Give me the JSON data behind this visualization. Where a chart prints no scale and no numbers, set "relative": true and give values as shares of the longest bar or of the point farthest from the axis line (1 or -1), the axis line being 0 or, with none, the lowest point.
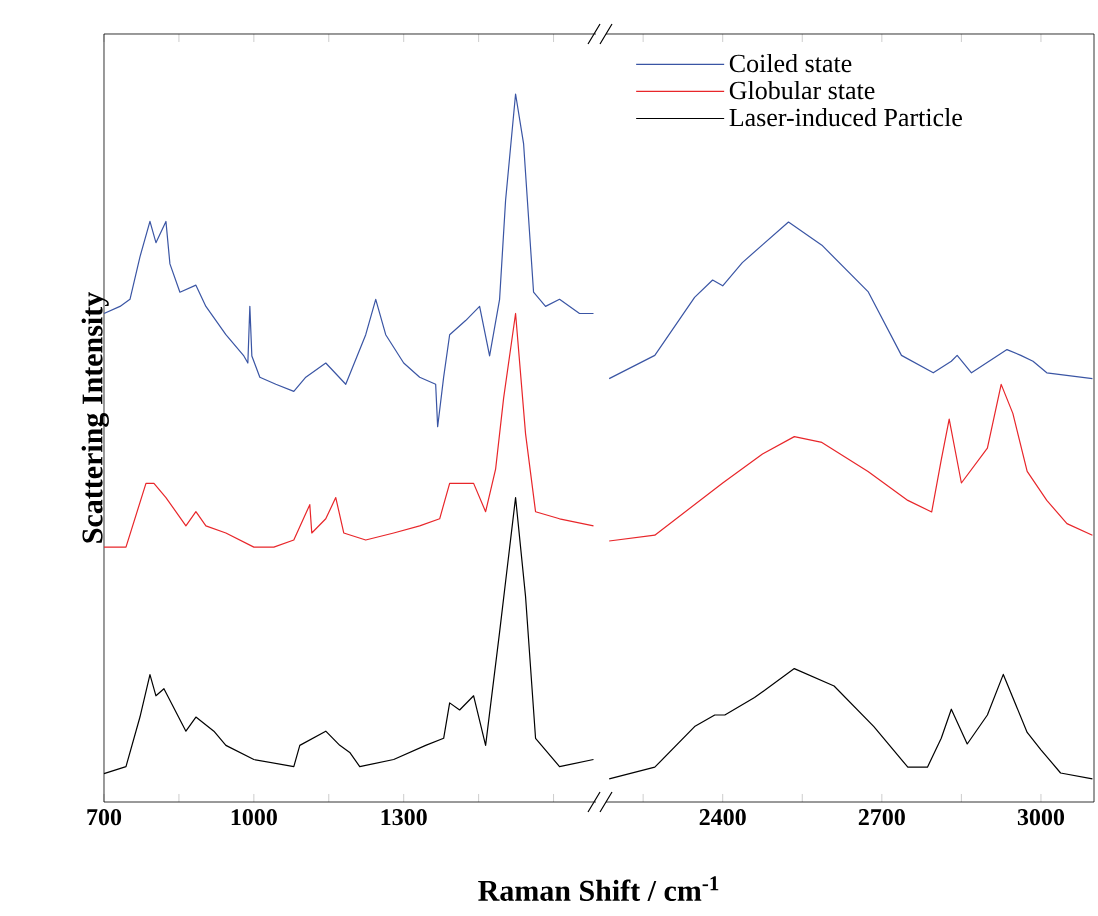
{
  "chart_data": [
    {
      "type": "line",
      "relative": true,
      "xlabel": "Raman Shift / cm$^{-1}$",
      "ylabel": "Scattering Intensity",
      "xlim": [
        700,
        1685
      ],
      "xticks": [
        700,
        {
          "value": 850,
          "label": null
        },
        1000,
        {
          "value": 1150,
          "label": null
        },
        1300,
        {
          "value": 1450,
          "label": null
        },
        {
          "value": 1600,
          "label": null
        }
      ],
      "tick_labels": "x",
      "marker": "none",
      "series": [
        {
          "color": "#3a55a4",
          "x": [
            700,
            732,
            752,
            772,
            792,
            804,
            824,
            832,
            852,
            884,
            904,
            944,
            980,
            988,
            992,
            996,
            1012,
            1044,
            1080,
            1104,
            1144,
            1184,
            1224,
            1244,
            1264,
            1300,
            1332,
            1364,
            1368,
            1380,
            1392,
            1424,
            1452,
            1472,
            1492,
            1504,
            1524,
            1540,
            1560,
            1584,
            1612,
            1652,
            1680
          ],
          "values": [
            0.69,
            0.7,
            0.71,
            0.77,
            0.82,
            0.79,
            0.82,
            0.76,
            0.72,
            0.73,
            0.7,
            0.66,
            0.63,
            0.62,
            0.7,
            0.63,
            0.6,
            0.59,
            0.58,
            0.6,
            0.62,
            0.59,
            0.66,
            0.71,
            0.66,
            0.62,
            0.6,
            0.59,
            0.53,
            0.6,
            0.66,
            0.68,
            0.7,
            0.63,
            0.71,
            0.85,
            1.0,
            0.93,
            0.72,
            0.7,
            0.71,
            0.69,
            0.69
          ]
        },
        {
          "color": "#e8262a",
          "x": [
            700,
            744,
            784,
            800,
            824,
            864,
            884,
            904,
            944,
            1000,
            1040,
            1080,
            1112,
            1116,
            1144,
            1164,
            1180,
            1224,
            1280,
            1332,
            1372,
            1392,
            1440,
            1464,
            1484,
            1500,
            1524,
            1544,
            1564,
            1612,
            1680
          ],
          "values": [
            0.36,
            0.36,
            0.45,
            0.45,
            0.43,
            0.39,
            0.41,
            0.39,
            0.38,
            0.36,
            0.36,
            0.37,
            0.42,
            0.38,
            0.4,
            0.43,
            0.38,
            0.37,
            0.38,
            0.39,
            0.4,
            0.45,
            0.45,
            0.41,
            0.47,
            0.57,
            0.69,
            0.52,
            0.41,
            0.4,
            0.39
          ]
        },
        {
          "color": "#000000",
          "x": [
            700,
            744,
            772,
            792,
            804,
            820,
            864,
            884,
            920,
            944,
            1000,
            1080,
            1092,
            1144,
            1172,
            1192,
            1212,
            1280,
            1344,
            1380,
            1392,
            1412,
            1440,
            1464,
            1492,
            1524,
            1544,
            1564,
            1612,
            1680
          ],
          "values": [
            0.04,
            0.05,
            0.12,
            0.18,
            0.15,
            0.16,
            0.1,
            0.12,
            0.1,
            0.08,
            0.06,
            0.05,
            0.08,
            0.1,
            0.08,
            0.07,
            0.05,
            0.06,
            0.08,
            0.09,
            0.14,
            0.13,
            0.15,
            0.08,
            0.24,
            0.43,
            0.29,
            0.09,
            0.05,
            0.06
          ]
        }
      ]
    },
    {
      "type": "line",
      "relative": true,
      "xlim": [
        2180,
        3100
      ],
      "xticks": [
        {
          "value": 2250,
          "label": null
        },
        2400,
        {
          "value": 2550,
          "label": null
        },
        2700,
        {
          "value": 2850,
          "label": null
        },
        3000
      ],
      "tick_labels": "x",
      "marker": "none",
      "legend": "top",
      "series": [
        {
          "name": "Coiled state",
          "color": "#3a55a4",
          "x": [
            2186,
            2272,
            2347,
            2381,
            2400,
            2437,
            2524,
            2587,
            2674,
            2737,
            2797,
            2831,
            2842,
            2869,
            2936,
            2962,
            2985,
            3011,
            3097
          ],
          "values": [
            0.73,
            0.77,
            0.87,
            0.9,
            0.89,
            0.93,
            1.0,
            0.96,
            0.88,
            0.77,
            0.74,
            0.76,
            0.77,
            0.74,
            0.78,
            0.77,
            0.76,
            0.74,
            0.73
          ]
        },
        {
          "name": "Globular state",
          "color": "#e8262a",
          "x": [
            2186,
            2272,
            2400,
            2475,
            2535,
            2587,
            2674,
            2749,
            2794,
            2812,
            2827,
            2850,
            2899,
            2925,
            2947,
            2974,
            3011,
            3049,
            3097
          ],
          "values": [
            0.45,
            0.46,
            0.55,
            0.6,
            0.63,
            0.62,
            0.57,
            0.52,
            0.5,
            0.59,
            0.66,
            0.55,
            0.61,
            0.72,
            0.67,
            0.57,
            0.52,
            0.48,
            0.46
          ]
        },
        {
          "name": "Laser-induced Particle",
          "color": "#000000",
          "x": [
            2186,
            2272,
            2347,
            2385,
            2404,
            2460,
            2535,
            2610,
            2685,
            2749,
            2786,
            2812,
            2831,
            2861,
            2899,
            2929,
            2974,
            3000,
            3037,
            3097
          ],
          "values": [
            0.04,
            0.06,
            0.13,
            0.15,
            0.15,
            0.18,
            0.23,
            0.2,
            0.13,
            0.06,
            0.06,
            0.11,
            0.16,
            0.1,
            0.15,
            0.22,
            0.12,
            0.09,
            0.05,
            0.04
          ]
        }
      ]
    }
  ]
}
